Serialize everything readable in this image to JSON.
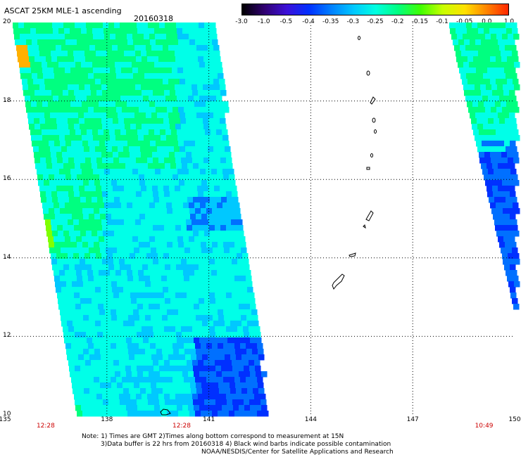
{
  "header": {
    "title": "ASCAT 25KM MLE-1 ascending",
    "date": "20160318"
  },
  "colorbar": {
    "labels": [
      "-3.0",
      "-1.0",
      "-0.5",
      "-0.4",
      "-0.35",
      "-0.3",
      "-0.25",
      "-0.2",
      "-0.15",
      "-0.1",
      "-0.05",
      "0.0",
      "1.0"
    ],
    "colors": [
      "#000000",
      "#300070",
      "#3c10d8",
      "#0030ff",
      "#0080ff",
      "#00c8ff",
      "#00ffe0",
      "#00ff80",
      "#40ff00",
      "#c8ff00",
      "#ffe000",
      "#ff8000",
      "#ff2000"
    ]
  },
  "map": {
    "lon_range": [
      135,
      150
    ],
    "lat_range": [
      10,
      20
    ],
    "lon_ticks": [
      "135",
      "138",
      "141",
      "144",
      "147",
      "150"
    ],
    "lat_ticks": [
      "20",
      "18",
      "16",
      "14",
      "12",
      "10"
    ],
    "time_labels": [
      {
        "text": "12:28",
        "lon": 136.2
      },
      {
        "text": "12:28",
        "lon": 140.2
      },
      {
        "text": "10:49",
        "lon": 149.1
      }
    ],
    "colors": {
      "cyan": "#00ffe8",
      "light_blue": "#00c8ff",
      "blue": "#0070ff",
      "dark_blue": "#0030ff",
      "green": "#00ff80",
      "yellow_green": "#80ff00",
      "orange": "#ffb000",
      "grid": "#000000"
    }
  },
  "note": {
    "line1": "Note: 1) Times are GMT 2)Times along bottom correspond to measurement at 15N",
    "line2": "3)Data buffer is 22 hrs from 20160318 4) Black wind barbs indicate possible contamination",
    "line3": "NOAA/NESDIS/Center for Satellite Applications and Research"
  }
}
